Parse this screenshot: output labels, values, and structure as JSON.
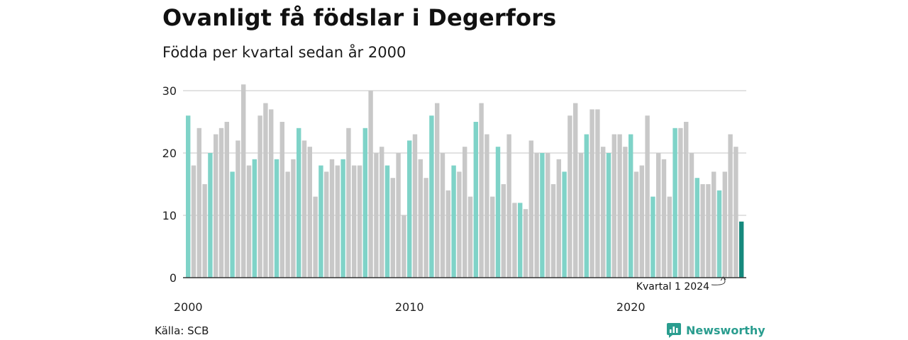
{
  "title": "Ovanligt få födslar i Degerfors",
  "subtitle": "Födda per kvartal sedan år 2000",
  "source": "Källa: SCB",
  "brand": "Newsworthy",
  "colors": {
    "q1": "#7fd3c8",
    "other": "#c8c8c8",
    "highlight": "#16897d",
    "grid": "#d9d9d9",
    "axis": "#333333",
    "brand": "#2a9d8f"
  },
  "chart_data": {
    "type": "bar",
    "title": "Ovanligt få födslar i Degerfors",
    "subtitle": "Födda per kvartal sedan år 2000",
    "x_start": {
      "year": 2000,
      "quarter": 1
    },
    "values": [
      26,
      18,
      24,
      15,
      20,
      23,
      24,
      25,
      17,
      22,
      31,
      18,
      19,
      26,
      28,
      27,
      19,
      25,
      17,
      19,
      24,
      22,
      21,
      13,
      18,
      17,
      19,
      18,
      19,
      24,
      18,
      18,
      24,
      30,
      20,
      21,
      18,
      16,
      20,
      10,
      22,
      23,
      19,
      16,
      26,
      28,
      20,
      14,
      18,
      17,
      21,
      13,
      25,
      28,
      23,
      13,
      21,
      15,
      23,
      12,
      12,
      11,
      22,
      20,
      20,
      20,
      15,
      19,
      17,
      26,
      28,
      20,
      23,
      27,
      27,
      21,
      20,
      23,
      23,
      21,
      23,
      17,
      18,
      26,
      13,
      20,
      19,
      13,
      24,
      24,
      25,
      20,
      16,
      15,
      15,
      17,
      14,
      17,
      23,
      21,
      9
    ],
    "ylim": [
      0,
      31
    ],
    "yticks": [
      0,
      10,
      20,
      30
    ],
    "ytick_labels": [
      "0",
      "10",
      "20",
      "30"
    ],
    "xtick_labels": [
      "2000",
      "2010",
      "2020"
    ],
    "grid": true,
    "annotation": "Kvartal 1 2024"
  }
}
